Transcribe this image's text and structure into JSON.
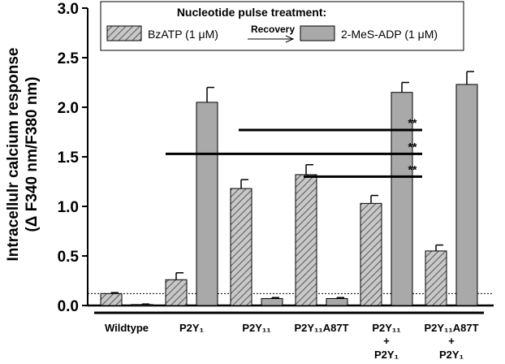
{
  "chart_data": {
    "type": "bar",
    "ylabel_line1": "Intracellulr calcium response",
    "ylabel_line2": "(Δ F340 nm/F380 nm)",
    "ylim": [
      0,
      3.0
    ],
    "yticks": [
      "0.0",
      "0.5",
      "1.0",
      "1.5",
      "2.0",
      "2.5",
      "3.0"
    ],
    "groups": [
      {
        "label": "Wildtype",
        "label_line2": "",
        "label_line3": ""
      },
      {
        "label": "P2Y₁",
        "label_line2": "",
        "label_line3": ""
      },
      {
        "label": "P2Y₁₁",
        "label_line2": "",
        "label_line3": ""
      },
      {
        "label": "P2Y₁₁A87T",
        "label_line2": "",
        "label_line3": ""
      },
      {
        "label": "P2Y₁₁",
        "label_line2": "+",
        "label_line3": "P2Y₁"
      },
      {
        "label": "P2Y₁₁A87T",
        "label_line2": "+",
        "label_line3": "P2Y₁"
      }
    ],
    "series": [
      {
        "name": "BzATP (1 μM)",
        "pattern": "hatched",
        "color": "#a9a9a9",
        "values": [
          0.12,
          0.26,
          1.18,
          1.32,
          1.03,
          0.55
        ],
        "errors": [
          0.01,
          0.07,
          0.09,
          0.1,
          0.08,
          0.06
        ]
      },
      {
        "name": "2-MeS-ADP (1 μM)",
        "pattern": "solid",
        "color": "#a9a9a9",
        "values": [
          0.01,
          2.05,
          0.07,
          0.07,
          2.15,
          2.23
        ],
        "errors": [
          0.005,
          0.15,
          0.01,
          0.01,
          0.1,
          0.13
        ]
      }
    ],
    "baseline_value": 0.12,
    "significance": [
      {
        "from_group": 2,
        "to_group": 4,
        "value": 1.77,
        "label": "**"
      },
      {
        "from_group": 1,
        "to_group": 4,
        "value": 1.53,
        "label": "**"
      },
      {
        "from_group": 3,
        "to_group": 4,
        "value": 1.3,
        "label": "**"
      }
    ],
    "legend": {
      "title": "Nucleotide pulse treatment:",
      "recovery_label": "Recovery",
      "position": "top"
    }
  }
}
